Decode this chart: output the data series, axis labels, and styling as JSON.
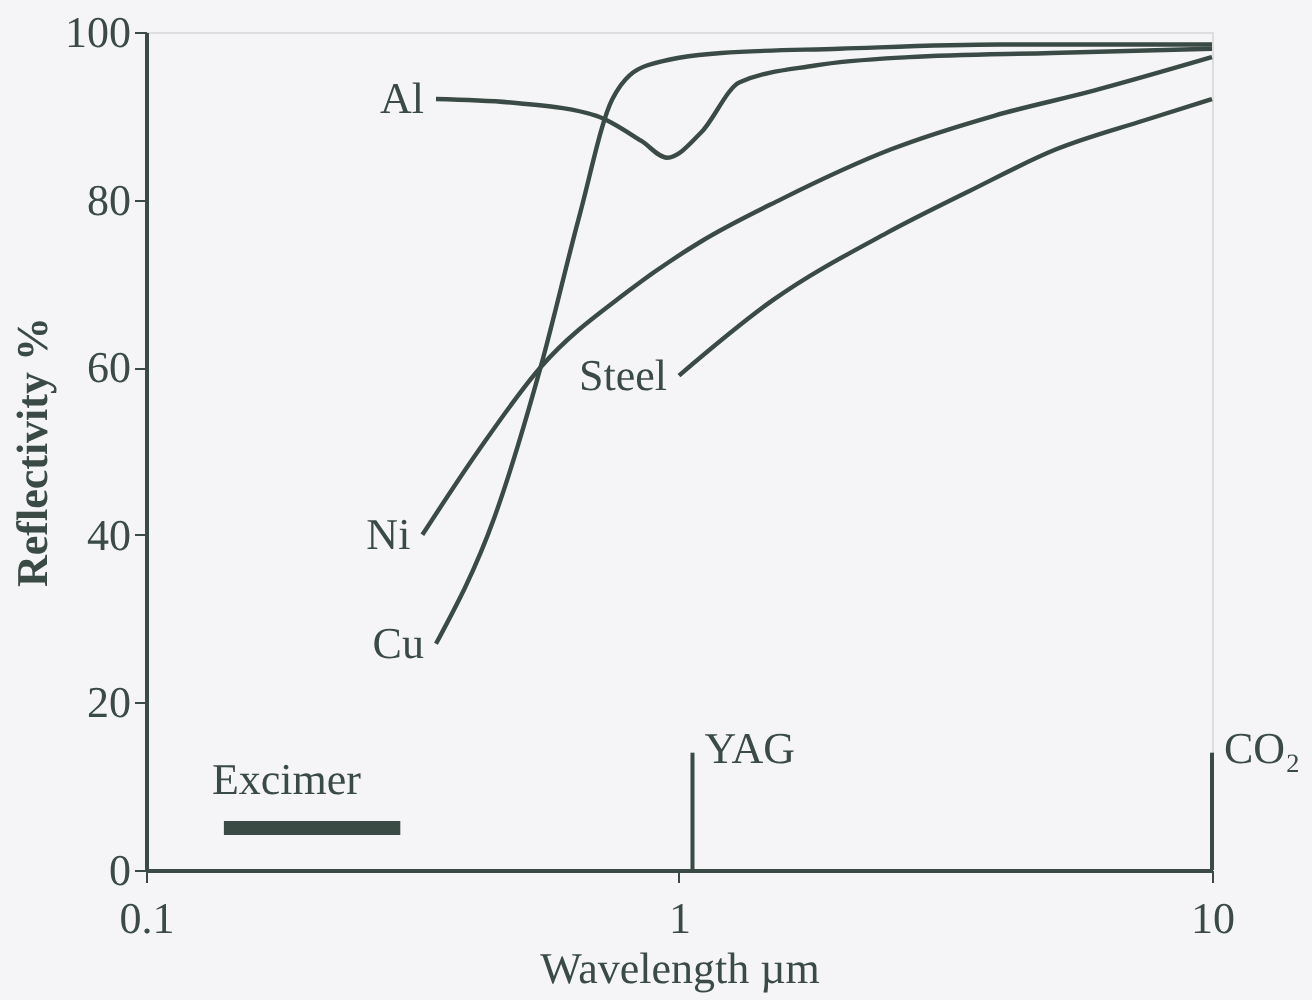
{
  "chart_data": {
    "type": "line",
    "xlabel": "Wavelength µm",
    "ylabel": "Reflectivity %",
    "log": "x",
    "grid": false,
    "marker": "none",
    "line_style": "solid",
    "xlim": [
      0.1,
      10
    ],
    "xticks": [
      0.1,
      1,
      10
    ],
    "ylim": [
      0,
      100
    ],
    "yticks": [
      0,
      20,
      40,
      60,
      80,
      100
    ],
    "series": [
      {
        "name": "Al",
        "color": "#3a4a44",
        "x": [
          0.35,
          0.5,
          0.7,
          0.85,
          0.95,
          1.1,
          1.3,
          1.8,
          2.7,
          5,
          10
        ],
        "values": [
          92,
          91.5,
          90,
          87,
          85,
          88,
          94,
          96,
          97,
          97.5,
          98
        ]
      },
      {
        "name": "Cu",
        "color": "#3a4a44",
        "x": [
          0.35,
          0.45,
          0.55,
          0.65,
          0.75,
          0.87,
          1.2,
          2,
          4,
          10
        ],
        "values": [
          27,
          42,
          60,
          78,
          92,
          96,
          97.5,
          98,
          98.5,
          98.5
        ]
      },
      {
        "name": "Ni",
        "color": "#3a4a44",
        "x": [
          0.33,
          0.42,
          0.55,
          0.8,
          1.1,
          1.55,
          2.5,
          3.9,
          6,
          10
        ],
        "values": [
          40,
          50,
          60,
          69,
          75,
          80,
          86,
          90,
          93,
          97
        ]
      },
      {
        "name": "Steel",
        "color": "#3a4a44",
        "x": [
          1.0,
          1.5,
          2.45,
          3.5,
          5.1,
          7.5,
          10
        ],
        "values": [
          59,
          68,
          76,
          81,
          86,
          89.5,
          92
        ]
      },
      {
        "color": "#3a4a44",
        "x": [
          0.14,
          0.3
        ],
        "values": [
          5,
          5
        ]
      }
    ],
    "annotations": [
      {
        "text": "Excimer",
        "x": 0.14,
        "y": 5
      }
    ],
    "ref_lines": [
      {
        "axis": "x",
        "value": 1.06,
        "label": "YAG",
        "color": "#3a4a44"
      },
      {
        "axis": "x",
        "value": 10,
        "label": "CO₂",
        "color": "#3a4a44"
      }
    ]
  }
}
